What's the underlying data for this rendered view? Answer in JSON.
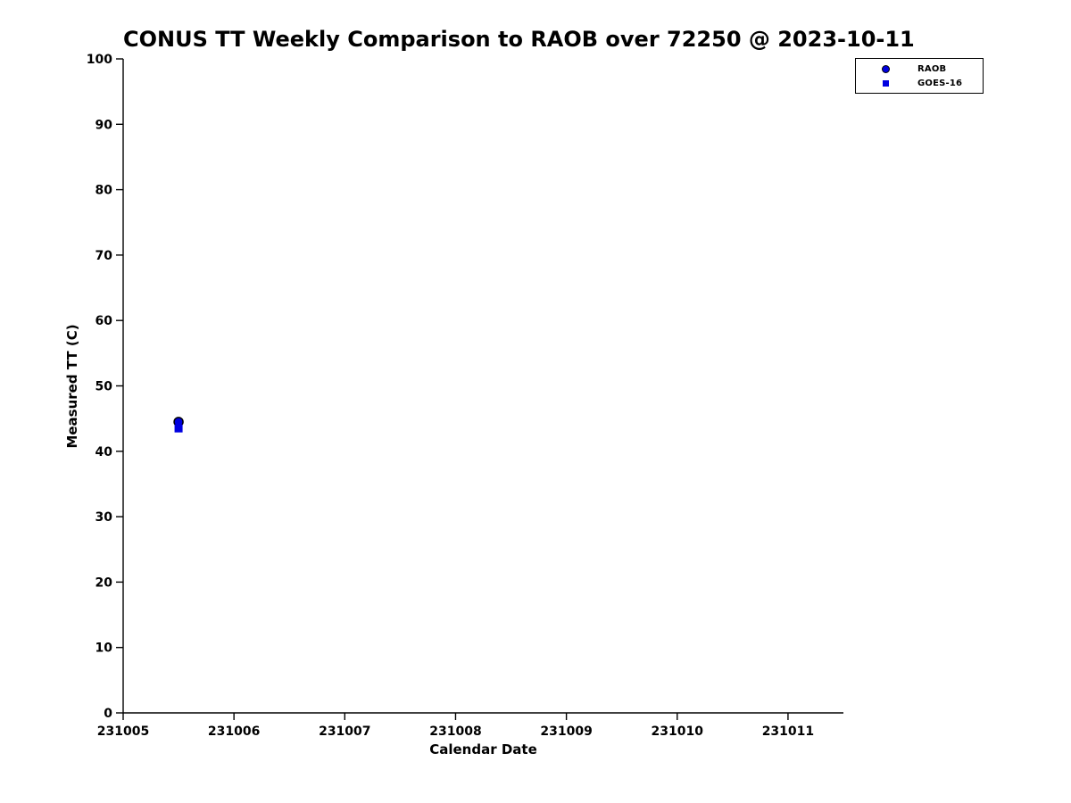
{
  "chart_data": {
    "type": "scatter",
    "title": "CONUS TT Weekly Comparison to RAOB over 72250 @ 2023-10-11",
    "xlabel": "Calendar Date",
    "ylabel": "Measured TT (C)",
    "xlim": [
      231005,
      231011.5
    ],
    "ylim": [
      0,
      100
    ],
    "xticks": [
      231005,
      231006,
      231007,
      231008,
      231009,
      231010,
      231011
    ],
    "yticks": [
      0,
      10,
      20,
      30,
      40,
      50,
      60,
      70,
      80,
      90,
      100
    ],
    "grid": false,
    "legend": {
      "position": "outside-top-right",
      "entries": [
        {
          "label": "RAOB",
          "marker": "circle"
        },
        {
          "label": "GOES-16",
          "marker": "square"
        }
      ]
    },
    "colors": {
      "marker": "#0000e0",
      "marker_edge": "#000000",
      "axis": "#000000",
      "background": "#ffffff"
    },
    "series": [
      {
        "name": "RAOB",
        "marker": "circle",
        "color": "#0000e0",
        "edge": "#000000",
        "points": [
          {
            "x": 231005.5,
            "y": 44.5
          }
        ]
      },
      {
        "name": "GOES-16",
        "marker": "square",
        "color": "#0000e0",
        "edge": "#0000e0",
        "points": [
          {
            "x": 231005.5,
            "y": 43.5
          }
        ]
      }
    ]
  }
}
